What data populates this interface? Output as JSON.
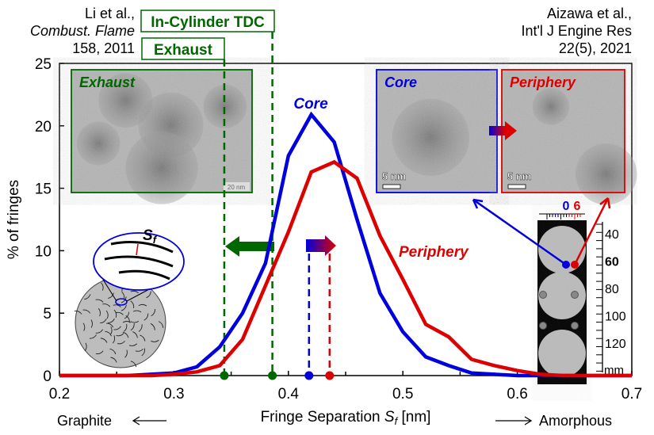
{
  "chart_data": {
    "type": "line",
    "xlabel": "Fringe Separation S_f [nm]",
    "xlabel_parts": {
      "pre": "Fringe Separation ",
      "sym": "S",
      "sub": "f",
      "post": " [nm]"
    },
    "ylabel": "% of fringes",
    "xlim": [
      0.2,
      0.7
    ],
    "ylim": [
      0,
      25
    ],
    "xticks": [
      "0.2",
      "0.3",
      "0.4",
      "0.5",
      "0.6",
      "0.7"
    ],
    "yticks": [
      "0",
      "5",
      "10",
      "15",
      "20",
      "25"
    ],
    "grid": false,
    "series": [
      {
        "name": "Core",
        "color": "#0000dd",
        "x": [
          0.2,
          0.26,
          0.28,
          0.3,
          0.32,
          0.34,
          0.36,
          0.38,
          0.4,
          0.42,
          0.44,
          0.46,
          0.48,
          0.5,
          0.52,
          0.54,
          0.56,
          0.58,
          0.6,
          0.7
        ],
        "y": [
          0,
          0,
          0.1,
          0.2,
          0.7,
          2.3,
          5.0,
          9.0,
          17.6,
          20.9,
          18.7,
          12.5,
          6.6,
          3.5,
          1.5,
          0.8,
          0.2,
          0.1,
          0,
          0
        ]
      },
      {
        "name": "Periphery",
        "color": "#dd0000",
        "x": [
          0.2,
          0.28,
          0.3,
          0.32,
          0.34,
          0.36,
          0.38,
          0.4,
          0.42,
          0.44,
          0.46,
          0.48,
          0.5,
          0.52,
          0.54,
          0.56,
          0.58,
          0.6,
          0.62,
          0.64,
          0.7
        ],
        "y": [
          0,
          0,
          0.1,
          0.3,
          0.8,
          2.9,
          7.2,
          11.5,
          16.3,
          17.1,
          15.8,
          11.2,
          7.7,
          4.1,
          3.1,
          1.3,
          0.8,
          0.4,
          0.1,
          0,
          0
        ]
      }
    ],
    "markers": [
      {
        "label": "Exhaust",
        "x": 0.344,
        "color": "#006600"
      },
      {
        "label": "In-Cylinder TDC",
        "x": 0.386,
        "color": "#006600"
      },
      {
        "label": "Core",
        "x": 0.418,
        "color": "#0000dd"
      },
      {
        "label": "Periphery",
        "x": 0.436,
        "color": "#dd0000"
      }
    ],
    "annotations": {
      "left_ref": [
        "Li et al.,",
        "Combust. Flame",
        "158, 2011"
      ],
      "right_ref": [
        "Aizawa et al.,",
        "Int'l J Engine Res",
        "22(5), 2021"
      ],
      "graphite": "Graphite",
      "amorphous": "Amorphous",
      "core_label": "Core",
      "periphery_label": "Periphery",
      "exhaust_box": "Exhaust",
      "tdc_box": "In-Cylinder TDC",
      "inset_exhaust": "Exhaust",
      "inset_core": "Core",
      "inset_periphery": "Periphery",
      "scale_20nm": "20 nm",
      "scale_5nm": "5 nm",
      "sf_symbol": "S",
      "sf_sub": "f",
      "engine_top": [
        "0",
        "6"
      ],
      "engine_scale": [
        "40",
        "60",
        "80",
        "100",
        "120"
      ],
      "engine_unit": "mm"
    }
  }
}
